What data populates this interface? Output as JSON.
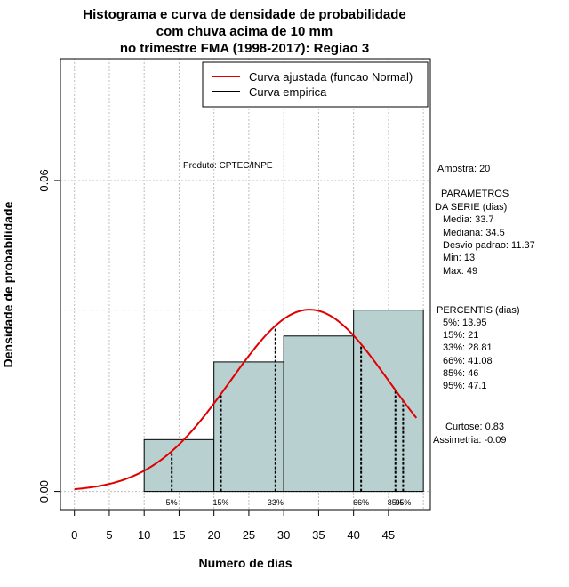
{
  "chart_data": {
    "type": "histogram",
    "title": [
      "Histograma e curva de densidade de probabilidade",
      "com chuva acima de 10 mm",
      "no trimestre FMA (1998-2017): Regiao 3"
    ],
    "xlabel": "Numero de dias",
    "ylabel": "Densidade de probabilidade",
    "xlim": [
      -2,
      51
    ],
    "ylim": [
      -0.0035,
      0.0835
    ],
    "x_ticks": [
      0,
      5,
      10,
      15,
      20,
      25,
      30,
      35,
      40,
      45
    ],
    "y_ticks": [
      0.0,
      0.06
    ],
    "y_tick_labels": [
      "0.00",
      "0.06"
    ],
    "bins": [
      {
        "start": 10,
        "end": 20,
        "density": 0.01
      },
      {
        "start": 20,
        "end": 30,
        "density": 0.025
      },
      {
        "start": 30,
        "end": 40,
        "density": 0.03
      },
      {
        "start": 40,
        "end": 50,
        "density": 0.035
      }
    ],
    "bar_color": "#b9d0d0",
    "curve_color": "#e00000",
    "normal_fit": {
      "mean": 33.7,
      "sd": 11.37,
      "x_range": [
        0,
        49
      ]
    },
    "percentile_lines": [
      {
        "label": "5%",
        "x": 13.95
      },
      {
        "label": "15%",
        "x": 21
      },
      {
        "label": "33%",
        "x": 28.81
      },
      {
        "label": "66%",
        "x": 41.08
      },
      {
        "label": "85%",
        "x": 46
      },
      {
        "label": "95%",
        "x": 47.1
      }
    ],
    "legend": [
      {
        "label": "Curva ajustada (funcao Normal)",
        "color": "#e00000"
      },
      {
        "label": "Curva empirica",
        "color": "#000000"
      }
    ],
    "product_label": "Produto: CPTEC/INPE",
    "stats_text": {
      "amostra": "Amostra: 20",
      "param_title_1": "PARAMETROS",
      "param_title_2": "DA SERIE (dias)",
      "media": "Media: 33.7",
      "mediana": "Mediana: 34.5",
      "desvio": "Desvio padrao: 11.37",
      "min": "Min: 13",
      "max": "Max: 49",
      "perc_title": "PERCENTIS (dias)",
      "p5": "5%: 13.95",
      "p15": "15%: 21",
      "p33": "33%: 28.81",
      "p66": "66%: 41.08",
      "p85": "85%: 46",
      "p95": "95%: 47.1",
      "curtose": "Curtose: 0.83",
      "assimetria": "Assimetria: -0.09"
    }
  }
}
